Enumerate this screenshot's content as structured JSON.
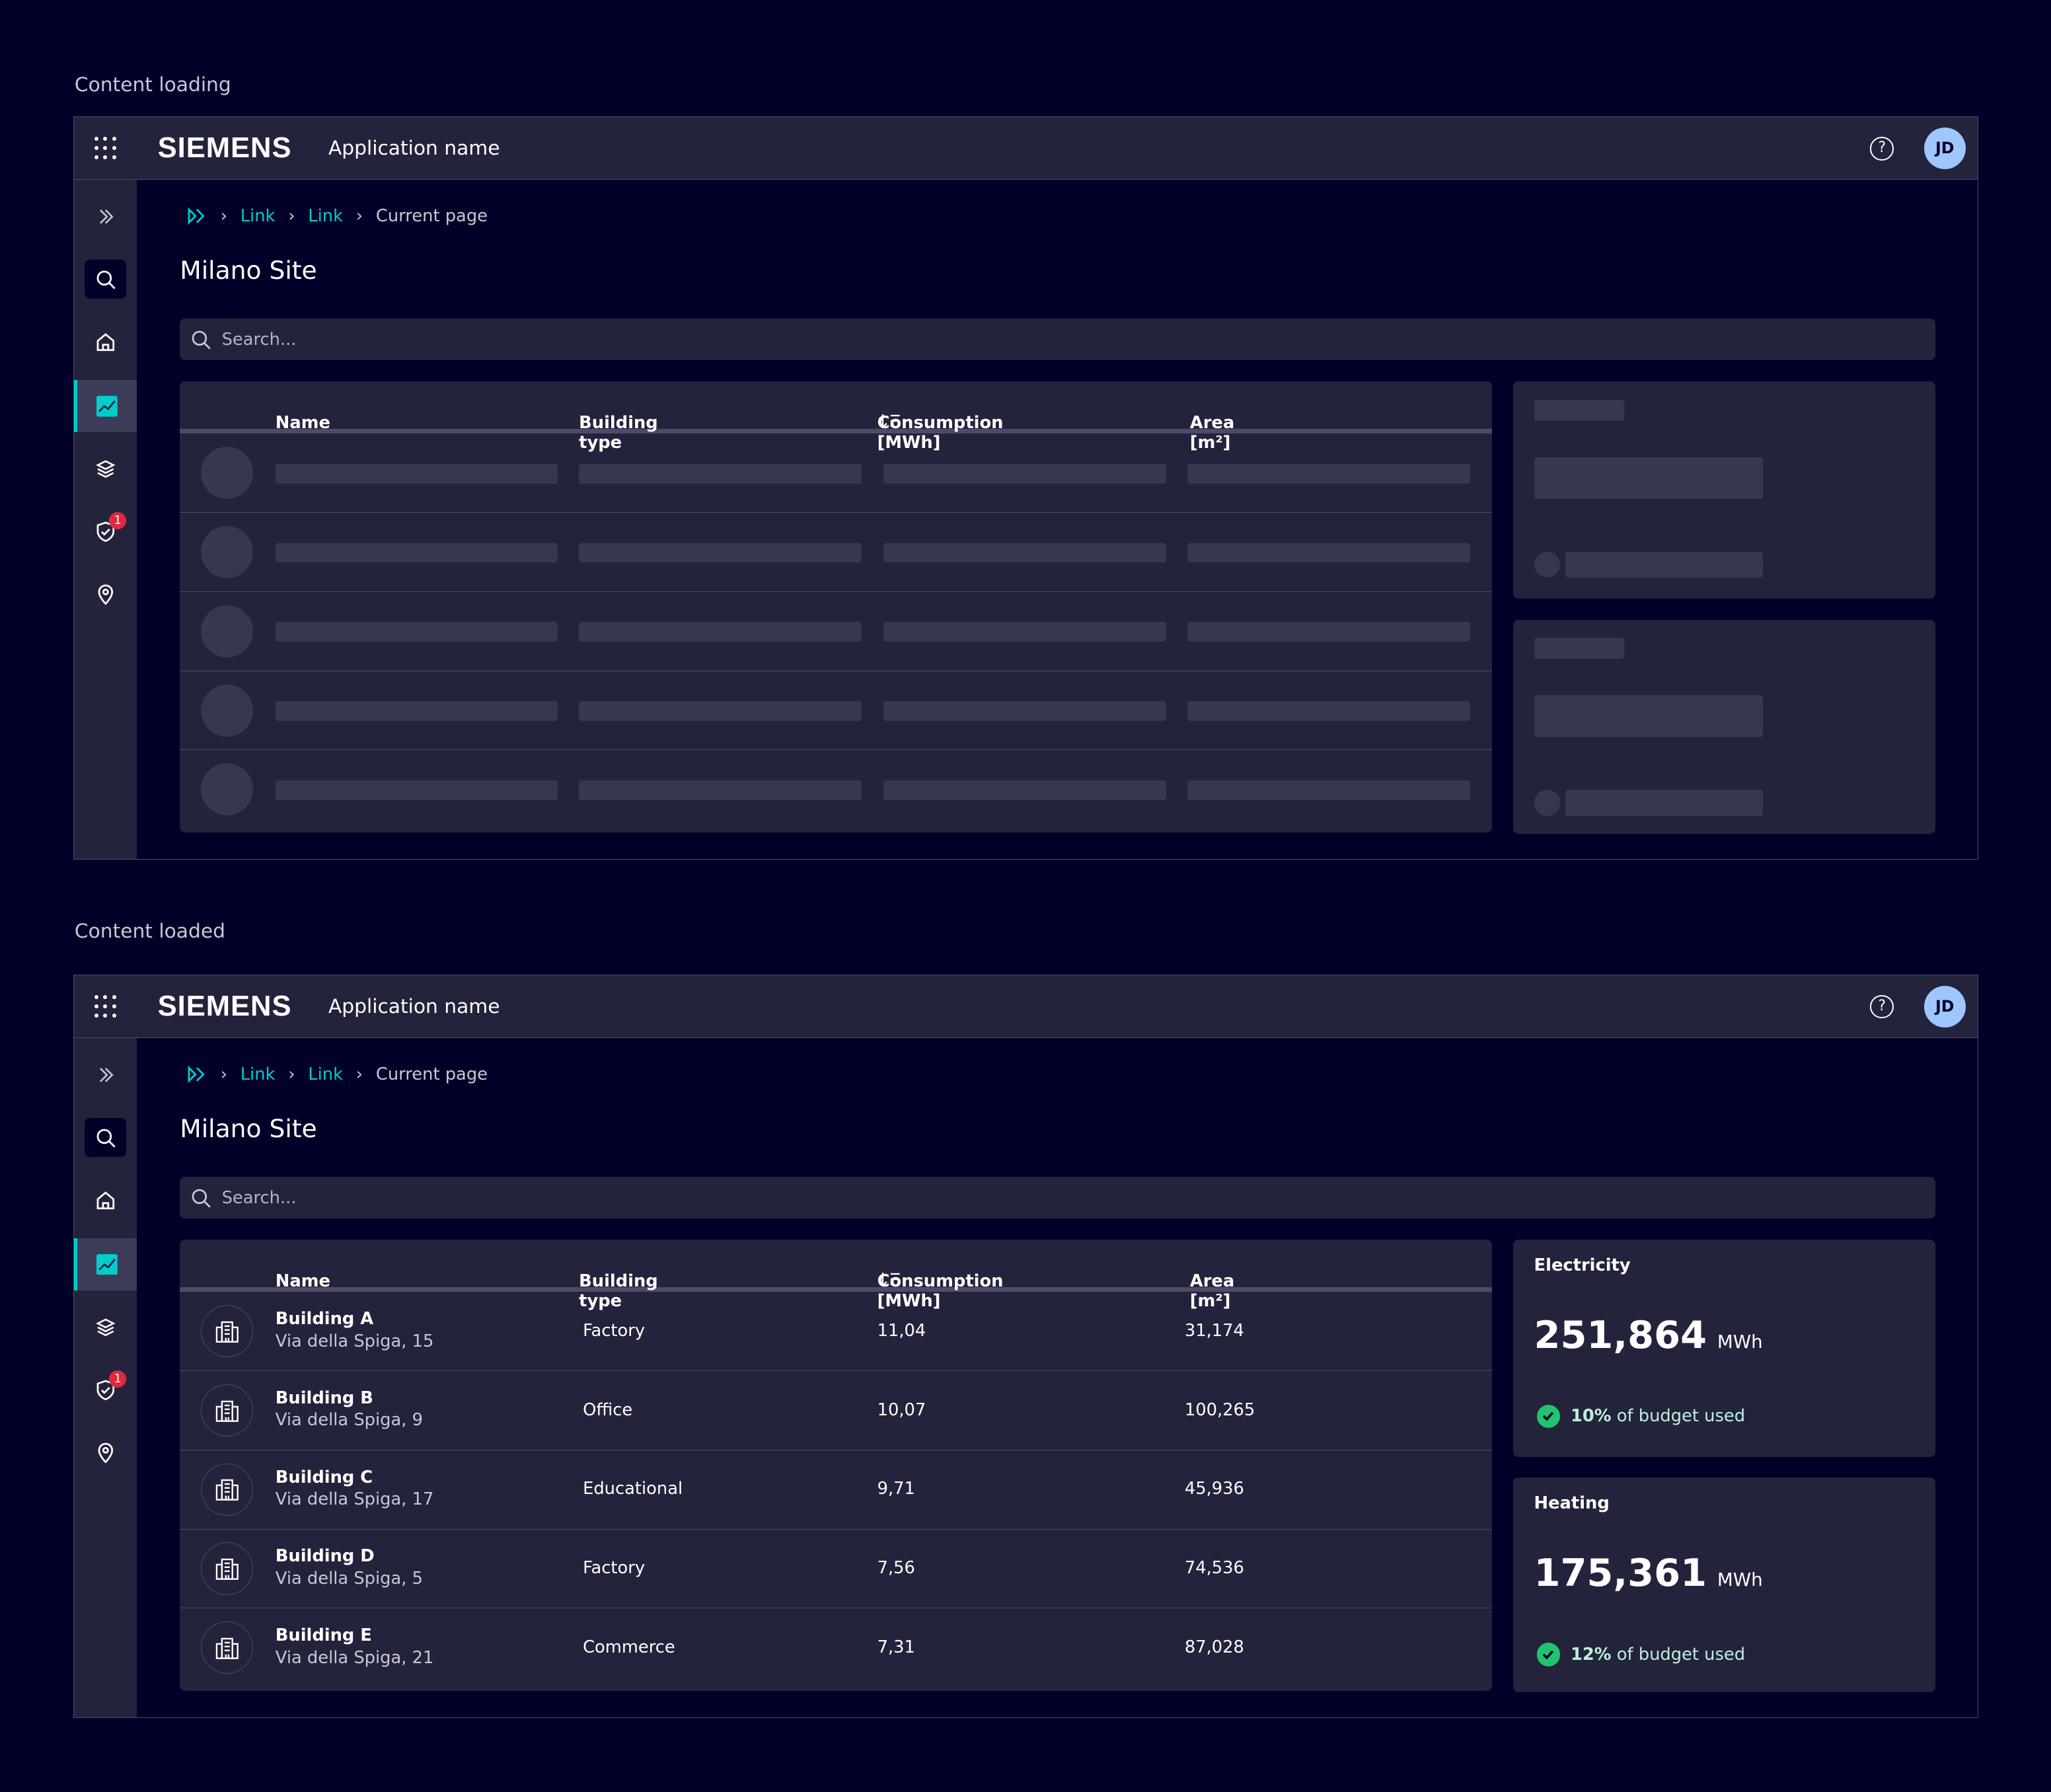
{
  "colors": {
    "background": "#000028",
    "panel": "#23233c",
    "accent": "#00cccc",
    "success": "#22c36e",
    "badge": "#e0293c",
    "avatar": "#9ec6ff"
  },
  "sections": [
    {
      "label": "Content loading",
      "state": "loading"
    },
    {
      "label": "Content loaded",
      "state": "loaded"
    }
  ],
  "header": {
    "apps_icon": "apps-grid-icon",
    "logo": "SIEMENS",
    "app_name": "Application name",
    "help_icon": "help-circle-icon",
    "help_glyph": "?",
    "avatar_initials": "JD"
  },
  "sidebar": {
    "items": [
      {
        "name": "expand",
        "icon": "double-chevron-right-icon"
      },
      {
        "name": "search",
        "icon": "search-icon"
      },
      {
        "name": "home",
        "icon": "home-icon"
      },
      {
        "name": "analytics",
        "icon": "trend-chart-icon",
        "active": true
      },
      {
        "name": "layers",
        "icon": "layers-icon"
      },
      {
        "name": "security",
        "icon": "shield-check-icon",
        "badge": "1"
      },
      {
        "name": "location",
        "icon": "location-pin-icon"
      }
    ]
  },
  "breadcrumb": {
    "home_icon": "home-double-chevron-icon",
    "items": [
      "Link",
      "Link"
    ],
    "current": "Current page"
  },
  "page_title": "Milano Site",
  "search": {
    "placeholder": "Search..."
  },
  "table": {
    "columns": [
      "Name",
      "Building type",
      "Consumption [MWh]",
      "Area [m²]"
    ],
    "sorted_column": "Consumption [MWh]",
    "sort_direction": "descending",
    "rows": [
      {
        "name": "Building A",
        "address": "Via della Spiga, 15",
        "type": "Factory",
        "consumption": "11,04",
        "area": "31,174"
      },
      {
        "name": "Building B",
        "address": "Via della Spiga, 9",
        "type": "Office",
        "consumption": "10,07",
        "area": "100,265"
      },
      {
        "name": "Building C",
        "address": "Via della Spiga, 17",
        "type": "Educational",
        "consumption": "9,71",
        "area": "45,936"
      },
      {
        "name": "Building D",
        "address": "Via della Spiga, 5",
        "type": "Factory",
        "consumption": "7,56",
        "area": "74,536"
      },
      {
        "name": "Building E",
        "address": "Via della Spiga, 21",
        "type": "Commerce",
        "consumption": "7,31",
        "area": "87,028"
      }
    ]
  },
  "cards": [
    {
      "title": "Electricity",
      "value": "251,864",
      "unit": "MWh",
      "percent": "10%",
      "status_text": "of budget used"
    },
    {
      "title": "Heating",
      "value": "175,361",
      "unit": "MWh",
      "percent": "12%",
      "status_text": "of budget used"
    }
  ]
}
